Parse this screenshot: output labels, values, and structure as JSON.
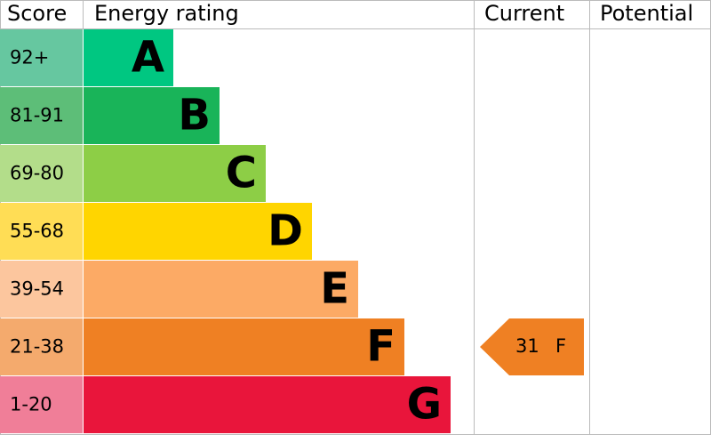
{
  "header": {
    "score": "Score",
    "rating": "Energy rating",
    "current": "Current",
    "potential": "Potential"
  },
  "bands": [
    {
      "score": "92+",
      "letter": "A",
      "score_color": "#66c7a0",
      "bar_color": "#00c781"
    },
    {
      "score": "81-91",
      "letter": "B",
      "score_color": "#5dbe78",
      "bar_color": "#19b459"
    },
    {
      "score": "69-80",
      "letter": "C",
      "score_color": "#b3dd8a",
      "bar_color": "#8dce46"
    },
    {
      "score": "55-68",
      "letter": "D",
      "score_color": "#ffdd55",
      "bar_color": "#ffd500"
    },
    {
      "score": "39-54",
      "letter": "E",
      "score_color": "#fcc69e",
      "bar_color": "#fcaa65"
    },
    {
      "score": "21-38",
      "letter": "F",
      "score_color": "#f4aa6d",
      "bar_color": "#ef8023"
    },
    {
      "score": "1-20",
      "letter": "G",
      "score_color": "#f07e98",
      "bar_color": "#e9153b"
    }
  ],
  "current": {
    "value": 31,
    "letter": "F",
    "band": 5,
    "color": "#ef8023"
  }
}
